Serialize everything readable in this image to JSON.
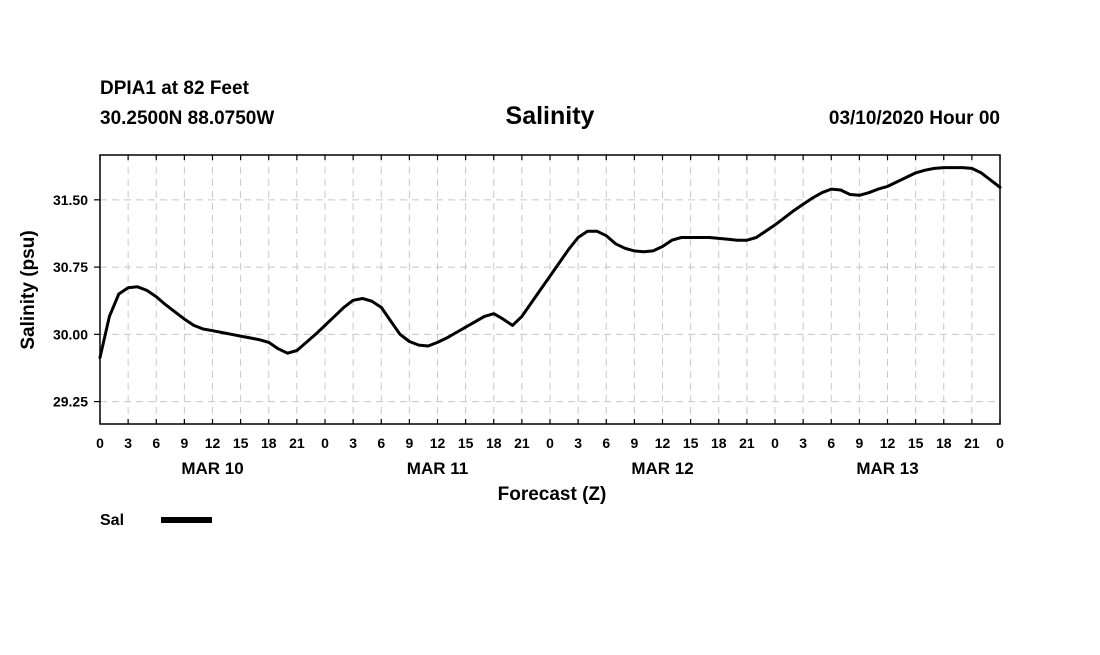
{
  "header": {
    "station": "DPIA1 at 82 Feet",
    "coords": "30.2500N 88.0750W",
    "title": "Salinity",
    "datetime": "03/10/2020 Hour 00"
  },
  "chart_data": {
    "type": "line",
    "title": "Salinity",
    "xlabel": "Forecast (Z)",
    "ylabel": "Salinity (psu)",
    "x_unit": "forecast hour",
    "xlim": [
      0,
      96
    ],
    "ylim": [
      29.0,
      32.0
    ],
    "grid": true,
    "yticks": [
      29.25,
      30.0,
      30.75,
      31.5
    ],
    "ytick_labels": [
      "29.25",
      "30.00",
      "30.75",
      "31.50"
    ],
    "xtick_labels": [
      "0",
      "3",
      "6",
      "9",
      "12",
      "15",
      "18",
      "21",
      "0",
      "3",
      "6",
      "9",
      "12",
      "15",
      "18",
      "21",
      "0",
      "3",
      "6",
      "9",
      "12",
      "15",
      "18",
      "21",
      "0",
      "3",
      "6",
      "9",
      "12",
      "15",
      "18",
      "21",
      "0"
    ],
    "day_labels": [
      {
        "label": "MAR 10",
        "hour": 12
      },
      {
        "label": "MAR 11",
        "hour": 36
      },
      {
        "label": "MAR 12",
        "hour": 60
      },
      {
        "label": "MAR 13",
        "hour": 84
      }
    ],
    "legend": [
      {
        "name": "Sal",
        "position": "bottom-left"
      }
    ],
    "series": [
      {
        "name": "Sal",
        "x": [
          0,
          1,
          2,
          3,
          4,
          5,
          6,
          7,
          8,
          9,
          10,
          11,
          12,
          13,
          14,
          15,
          16,
          17,
          18,
          19,
          20,
          21,
          22,
          23,
          24,
          25,
          26,
          27,
          28,
          29,
          30,
          31,
          32,
          33,
          34,
          35,
          36,
          37,
          38,
          39,
          40,
          41,
          42,
          43,
          44,
          45,
          46,
          47,
          48,
          49,
          50,
          51,
          52,
          53,
          54,
          55,
          56,
          57,
          58,
          59,
          60,
          61,
          62,
          63,
          64,
          65,
          66,
          67,
          68,
          69,
          70,
          71,
          72,
          73,
          74,
          75,
          76,
          77,
          78,
          79,
          80,
          81,
          82,
          83,
          84,
          85,
          86,
          87,
          88,
          89,
          90,
          91,
          92,
          93,
          94,
          95,
          96
        ],
        "values": [
          29.74,
          30.2,
          30.45,
          30.52,
          30.53,
          30.49,
          30.42,
          30.33,
          30.25,
          30.17,
          30.1,
          30.06,
          30.04,
          30.02,
          30.0,
          29.98,
          29.96,
          29.94,
          29.91,
          29.84,
          29.79,
          29.82,
          29.91,
          30.0,
          30.1,
          30.2,
          30.3,
          30.38,
          30.4,
          30.37,
          30.3,
          30.15,
          30.0,
          29.92,
          29.88,
          29.87,
          29.91,
          29.96,
          30.02,
          30.08,
          30.14,
          30.2,
          30.23,
          30.17,
          30.1,
          30.2,
          30.35,
          30.5,
          30.65,
          30.8,
          30.95,
          31.08,
          31.15,
          31.15,
          31.1,
          31.01,
          30.96,
          30.93,
          30.92,
          30.93,
          30.98,
          31.05,
          31.08,
          31.08,
          31.08,
          31.08,
          31.07,
          31.06,
          31.05,
          31.05,
          31.08,
          31.15,
          31.22,
          31.3,
          31.38,
          31.45,
          31.52,
          31.58,
          31.62,
          31.61,
          31.56,
          31.55,
          31.58,
          31.62,
          31.65,
          31.7,
          31.75,
          31.8,
          31.83,
          31.85,
          31.86,
          31.86,
          31.86,
          31.85,
          31.8,
          31.72,
          31.64
        ]
      }
    ]
  }
}
